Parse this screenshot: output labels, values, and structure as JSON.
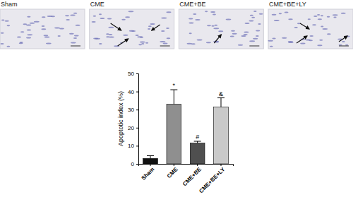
{
  "chart_data": {
    "type": "bar",
    "categories": [
      "Sham",
      "CME",
      "CME+BE",
      "CME+BE+LY"
    ],
    "values": [
      3,
      33,
      11.5,
      31.5
    ],
    "errors": [
      1.5,
      8,
      1,
      5
    ],
    "colors": [
      "#111111",
      "#8f8f8f",
      "#4f4f4f",
      "#c9c9c9"
    ],
    "y_label": "Apoptotic index (%)",
    "ylim": [
      0,
      50
    ],
    "yticks": [
      0,
      10,
      20,
      30,
      40,
      50
    ],
    "annotations": [
      {
        "category": "CME",
        "text": "*"
      },
      {
        "category": "CME+BE",
        "text": "#"
      },
      {
        "category": "CME+BE+LY",
        "text": "&"
      }
    ],
    "grid": false
  },
  "image_panels": {
    "labels": [
      "Sham",
      "CME",
      "CME+BE",
      "CME+BE+LY"
    ]
  }
}
